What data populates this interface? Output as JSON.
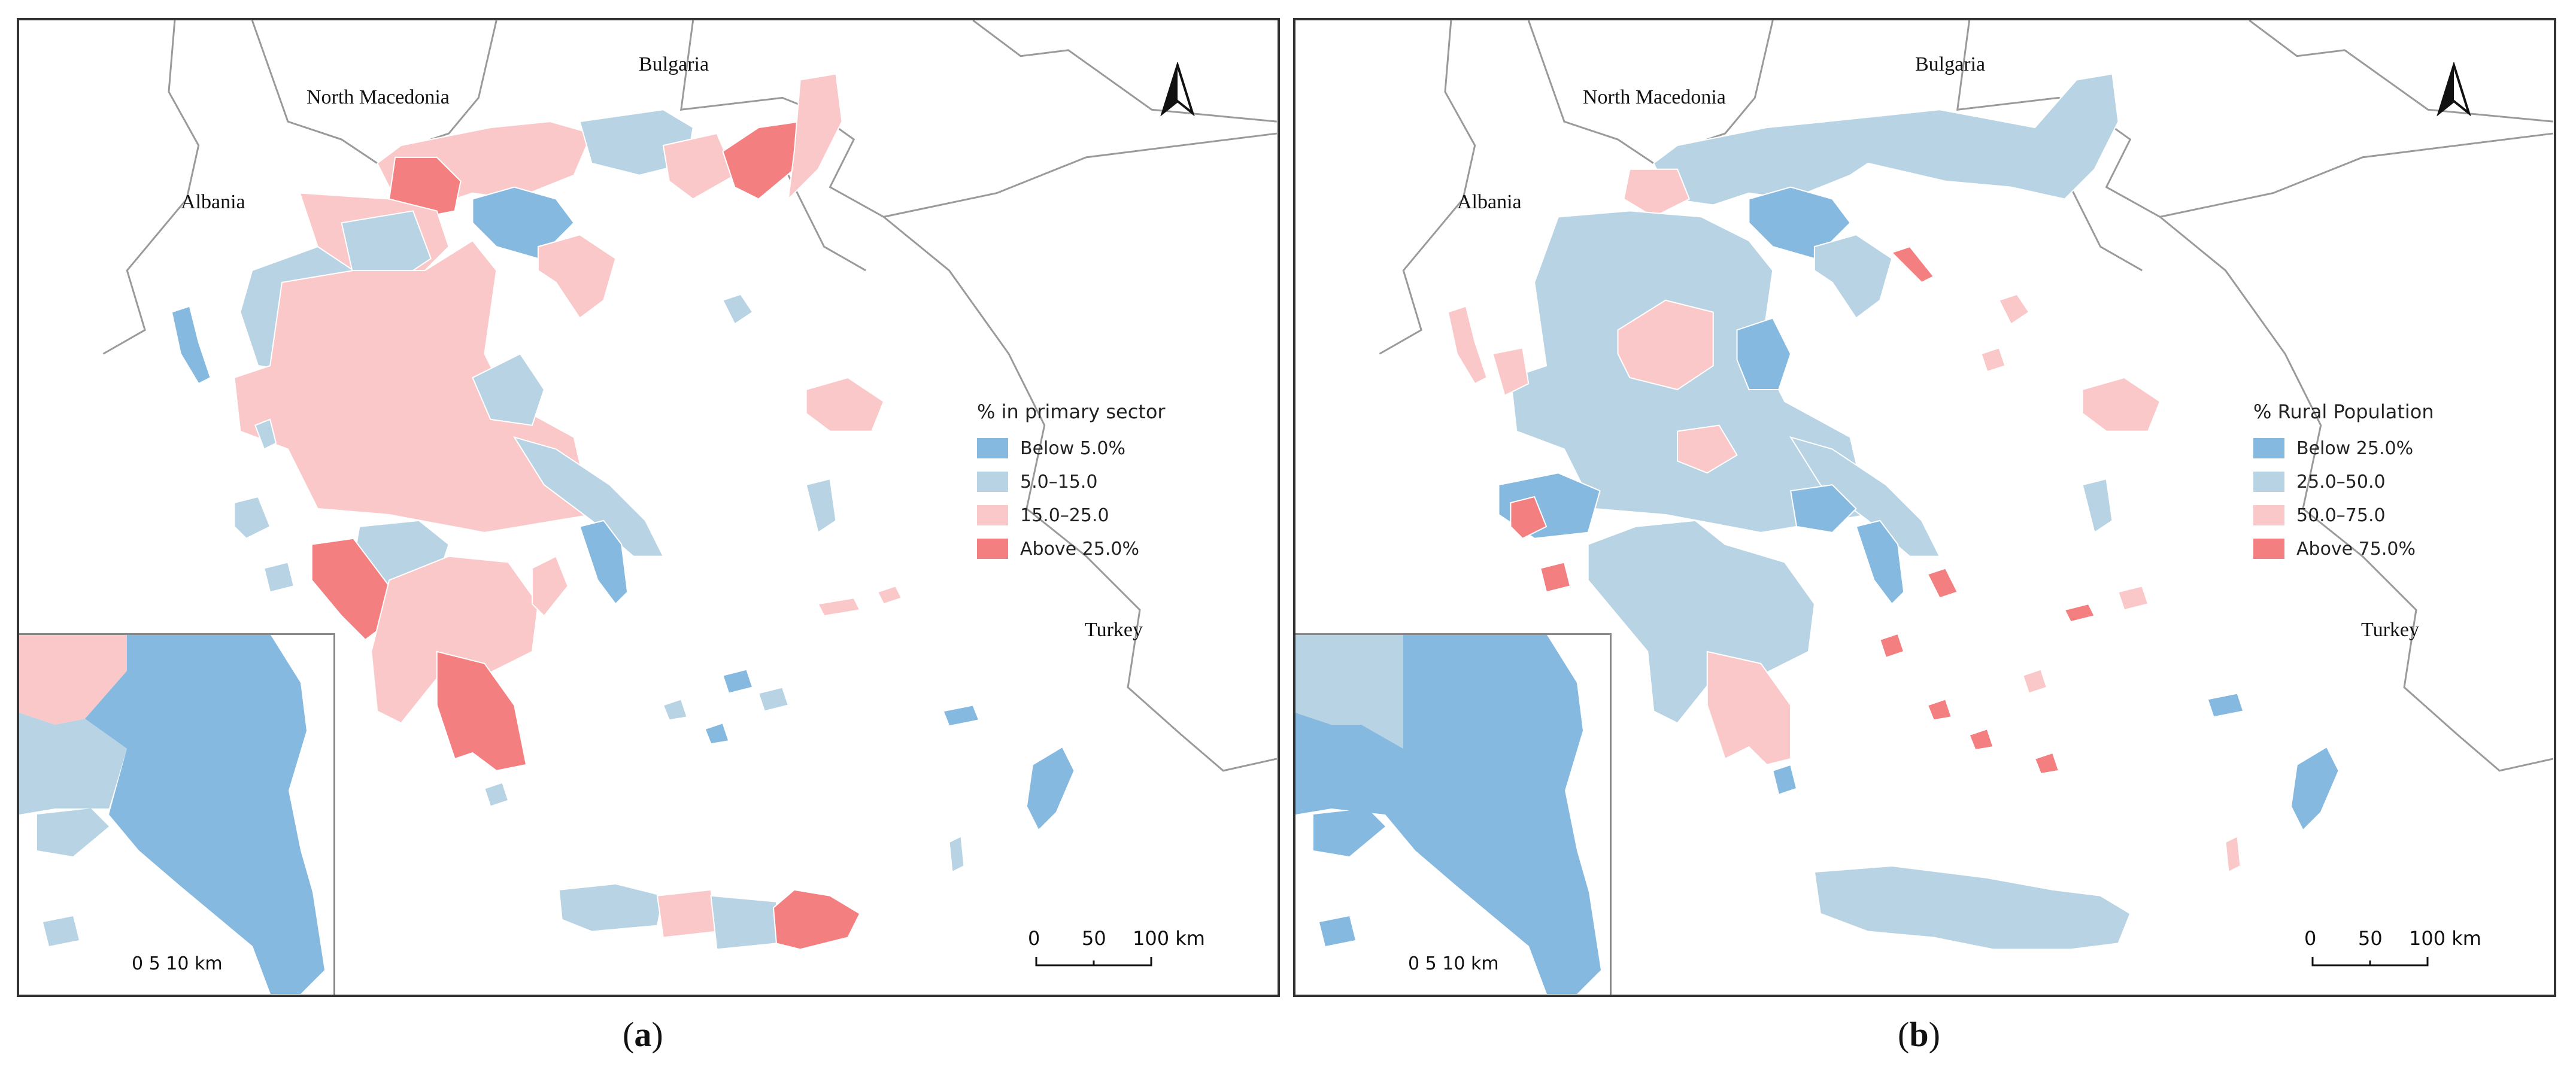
{
  "colors": {
    "class1": "#86b9e0",
    "class2": "#b7d3e4",
    "class3": "#fac8c8",
    "class4": "#f47f80",
    "border": "#9a9a9a",
    "water": "#ffffff"
  },
  "panels": [
    {
      "caption_letter": "a",
      "legend": {
        "title": "% in primary sector",
        "items": [
          {
            "label": "Below 5.0%",
            "color": "#86b9e0"
          },
          {
            "label": "5.0–15.0",
            "color": "#b7d3e4"
          },
          {
            "label": "15.0–25.0",
            "color": "#fac8c8"
          },
          {
            "label": "Above 25.0%",
            "color": "#f47f80"
          }
        ]
      },
      "country_labels": {
        "albania": "Albania",
        "north_macedonia": "North Macedonia",
        "bulgaria": "Bulgaria",
        "turkey": "Turkey"
      },
      "scale": {
        "ticks": [
          "0",
          "50",
          "100 km"
        ]
      },
      "inset_scale": {
        "label": "0  5 10 km"
      },
      "north_arrow": "north-arrow-icon"
    },
    {
      "caption_letter": "b",
      "legend": {
        "title": "% Rural Population",
        "items": [
          {
            "label": "Below 25.0%",
            "color": "#86b9e0"
          },
          {
            "label": "25.0–50.0",
            "color": "#b7d3e4"
          },
          {
            "label": "50.0–75.0",
            "color": "#fac8c8"
          },
          {
            "label": "Above 75.0%",
            "color": "#f47f80"
          }
        ]
      },
      "country_labels": {
        "albania": "Albania",
        "north_macedonia": "North Macedonia",
        "bulgaria": "Bulgaria",
        "turkey": "Turkey"
      },
      "scale": {
        "ticks": [
          "0",
          "50",
          "100 km"
        ]
      },
      "inset_scale": {
        "label": "0  5 10 km"
      },
      "north_arrow": "north-arrow-icon"
    }
  ]
}
